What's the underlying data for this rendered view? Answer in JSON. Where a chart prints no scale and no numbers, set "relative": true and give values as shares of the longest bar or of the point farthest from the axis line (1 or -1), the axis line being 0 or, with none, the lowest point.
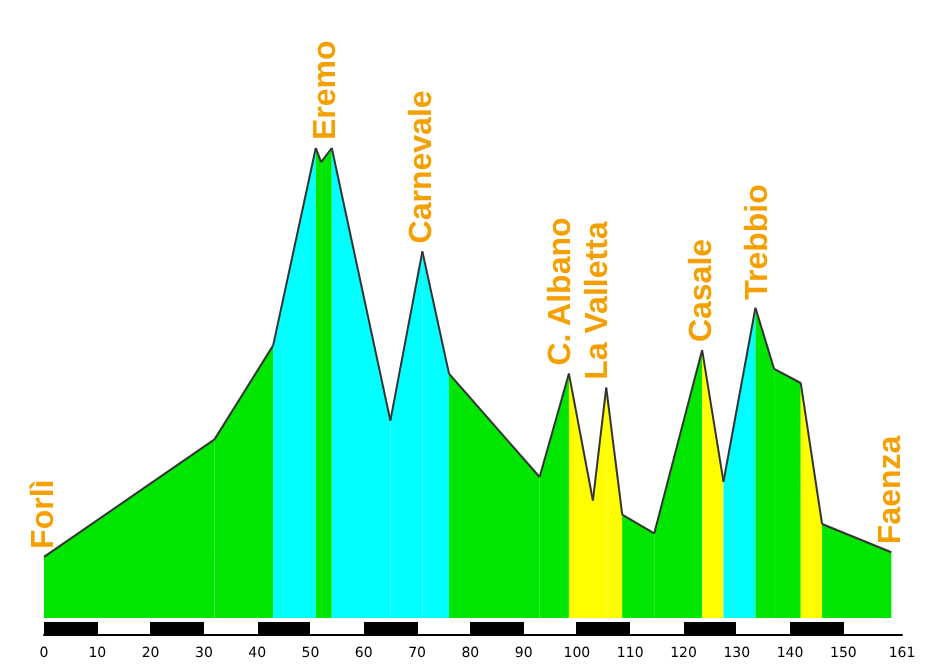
{
  "chart_data": {
    "type": "area",
    "relative": true,
    "xlim": [
      0,
      161
    ],
    "xticks": [
      0,
      10,
      20,
      30,
      40,
      50,
      60,
      70,
      80,
      90,
      100,
      110,
      120,
      130,
      140,
      150,
      161
    ],
    "tick_labels": "x",
    "grid": false,
    "marker": "none",
    "series": [
      {
        "color": "#00e600",
        "x": [
          0,
          32
        ],
        "values": [
          0.13,
          0.38
        ]
      },
      {
        "color": "#00e600",
        "x": [
          32,
          43
        ],
        "values": [
          0.38,
          0.58
        ]
      },
      {
        "color": "#00ffff",
        "x": [
          43,
          51
        ],
        "values": [
          0.58,
          1.0
        ]
      },
      {
        "color": "#00e600",
        "x": [
          51,
          52
        ],
        "values": [
          1.0,
          0.97
        ]
      },
      {
        "color": "#00e600",
        "x": [
          52,
          54
        ],
        "values": [
          0.97,
          1.0
        ]
      },
      {
        "color": "#00ffff",
        "x": [
          54,
          65
        ],
        "values": [
          1.0,
          0.42
        ]
      },
      {
        "color": "#00ffff",
        "x": [
          65,
          71
        ],
        "values": [
          0.42,
          0.78
        ]
      },
      {
        "color": "#00ffff",
        "x": [
          71,
          76
        ],
        "values": [
          0.78,
          0.52
        ]
      },
      {
        "color": "#00e600",
        "x": [
          76,
          93
        ],
        "values": [
          0.52,
          0.3
        ]
      },
      {
        "color": "#00e600",
        "x": [
          93,
          98.5
        ],
        "values": [
          0.3,
          0.52
        ]
      },
      {
        "color": "#ffff00",
        "x": [
          98.5,
          103
        ],
        "values": [
          0.52,
          0.25
        ]
      },
      {
        "color": "#ffff00",
        "x": [
          103,
          105.5
        ],
        "values": [
          0.25,
          0.49
        ]
      },
      {
        "color": "#ffff00",
        "x": [
          105.5,
          108.5
        ],
        "values": [
          0.49,
          0.22
        ]
      },
      {
        "color": "#00e600",
        "x": [
          108.5,
          114.5
        ],
        "values": [
          0.22,
          0.18
        ]
      },
      {
        "color": "#00e600",
        "x": [
          114.5,
          123.5
        ],
        "values": [
          0.18,
          0.57
        ]
      },
      {
        "color": "#ffff00",
        "x": [
          123.5,
          127.5
        ],
        "values": [
          0.57,
          0.29
        ]
      },
      {
        "color": "#00ffff",
        "x": [
          127.5,
          133.5
        ],
        "values": [
          0.29,
          0.66
        ]
      },
      {
        "color": "#00e600",
        "x": [
          133.5,
          137
        ],
        "values": [
          0.66,
          0.53
        ]
      },
      {
        "color": "#00e600",
        "x": [
          137,
          142
        ],
        "values": [
          0.53,
          0.5
        ]
      },
      {
        "color": "#ffff00",
        "x": [
          142,
          146
        ],
        "values": [
          0.5,
          0.2
        ]
      },
      {
        "color": "#00e600",
        "x": [
          146,
          159
        ],
        "values": [
          0.2,
          0.14
        ]
      }
    ],
    "annotations": [
      {
        "text": "Forlì",
        "x": 0,
        "y": 0.13
      },
      {
        "text": "Eremo",
        "x": 53,
        "y": 1.0
      },
      {
        "text": "Carnevale",
        "x": 71,
        "y": 0.78
      },
      {
        "text": "C. Albano",
        "x": 97,
        "y": 0.52
      },
      {
        "text": "La Valletta",
        "x": 104,
        "y": 0.49
      },
      {
        "text": "Casale",
        "x": 123.5,
        "y": 0.57
      },
      {
        "text": "Trebbio",
        "x": 134,
        "y": 0.66
      },
      {
        "text": "Faenza",
        "x": 159,
        "y": 0.14
      }
    ]
  }
}
